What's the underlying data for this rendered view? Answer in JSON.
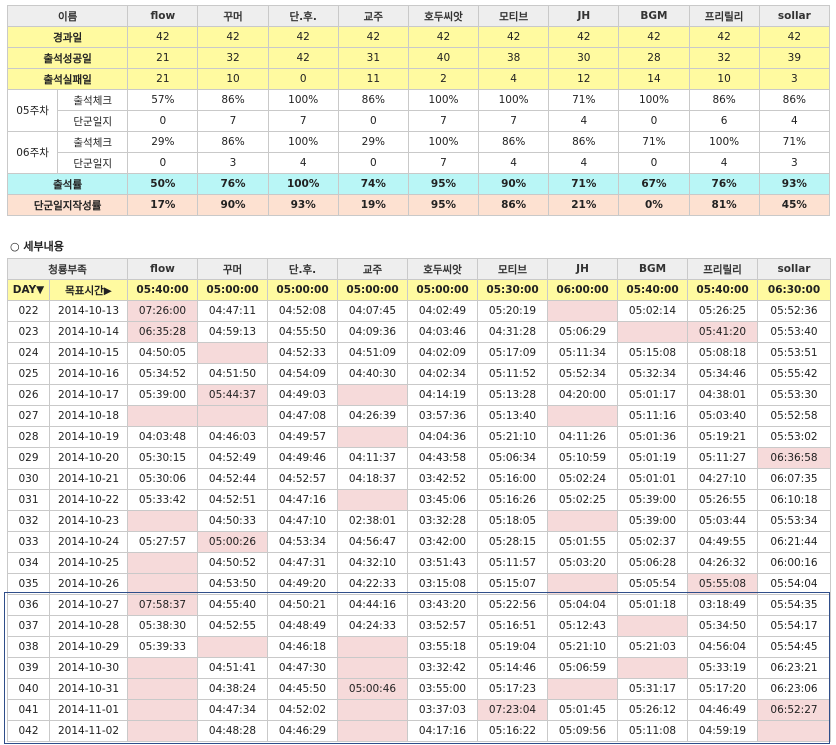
{
  "members": [
    "flow",
    "꾸머",
    "단.후.",
    "교주",
    "호두씨앗",
    "모티브",
    "JH",
    "BGM",
    "프리릴리",
    "sollar"
  ],
  "summary": {
    "name_label": "이름",
    "rows": [
      {
        "label": "경과일",
        "values": [
          "42",
          "42",
          "42",
          "42",
          "42",
          "42",
          "42",
          "42",
          "42",
          "42"
        ]
      },
      {
        "label": "출석성공일",
        "values": [
          "21",
          "32",
          "42",
          "31",
          "40",
          "38",
          "30",
          "28",
          "32",
          "39"
        ]
      },
      {
        "label": "출석실패일",
        "values": [
          "21",
          "10",
          "0",
          "11",
          "2",
          "4",
          "12",
          "14",
          "10",
          "3"
        ]
      }
    ],
    "weeks": [
      {
        "week": "05주차",
        "attendance_label": "출석체크",
        "attendance": [
          "57%",
          "86%",
          "100%",
          "86%",
          "100%",
          "100%",
          "71%",
          "100%",
          "86%",
          "86%"
        ],
        "journal_label": "단군일지",
        "journal": [
          "0",
          "7",
          "7",
          "0",
          "7",
          "7",
          "4",
          "0",
          "6",
          "4"
        ]
      },
      {
        "week": "06주차",
        "attendance_label": "출석체크",
        "attendance": [
          "29%",
          "86%",
          "100%",
          "29%",
          "100%",
          "86%",
          "86%",
          "71%",
          "100%",
          "71%"
        ],
        "journal_label": "단군일지",
        "journal": [
          "0",
          "3",
          "4",
          "0",
          "7",
          "4",
          "4",
          "0",
          "4",
          "3"
        ]
      }
    ],
    "rate_label": "출석률",
    "rates": [
      "50%",
      "76%",
      "100%",
      "74%",
      "95%",
      "90%",
      "71%",
      "67%",
      "76%",
      "93%"
    ],
    "journal_rate_label": "단군일지작성률",
    "journal_rates": [
      "17%",
      "90%",
      "93%",
      "19%",
      "95%",
      "86%",
      "21%",
      "0%",
      "81%",
      "45%"
    ]
  },
  "detail": {
    "section_label": "○ 세부내용",
    "group_label": "청룡부족",
    "day_label": "DAY▼",
    "target_label": "목표시간▶",
    "targets": [
      "05:40:00",
      "05:00:00",
      "05:00:00",
      "05:00:00",
      "05:00:00",
      "05:30:00",
      "06:00:00",
      "05:40:00",
      "05:40:00",
      "06:30:00"
    ],
    "rows": [
      {
        "day": "022",
        "date": "2014-10-13",
        "times": [
          "07:26:00",
          "04:47:11",
          "04:52:08",
          "04:07:45",
          "04:02:49",
          "05:20:19",
          "",
          "05:02:14",
          "05:26:25",
          "05:52:36"
        ],
        "miss": [
          1,
          0,
          0,
          0,
          0,
          0,
          1,
          0,
          0,
          0
        ]
      },
      {
        "day": "023",
        "date": "2014-10-14",
        "times": [
          "06:35:28",
          "04:59:13",
          "04:55:50",
          "04:09:36",
          "04:03:46",
          "04:31:28",
          "05:06:29",
          "",
          "05:41:20",
          "05:53:40"
        ],
        "miss": [
          1,
          0,
          0,
          0,
          0,
          0,
          0,
          1,
          1,
          0
        ]
      },
      {
        "day": "024",
        "date": "2014-10-15",
        "times": [
          "04:50:05",
          "",
          "04:52:33",
          "04:51:09",
          "04:02:09",
          "05:17:09",
          "05:11:34",
          "05:15:08",
          "05:08:18",
          "05:53:51"
        ],
        "miss": [
          0,
          1,
          0,
          0,
          0,
          0,
          0,
          0,
          0,
          0
        ]
      },
      {
        "day": "025",
        "date": "2014-10-16",
        "times": [
          "05:34:52",
          "04:51:50",
          "04:54:09",
          "04:40:30",
          "04:02:34",
          "05:11:52",
          "05:52:34",
          "05:32:34",
          "05:34:46",
          "05:55:42"
        ],
        "miss": [
          0,
          0,
          0,
          0,
          0,
          0,
          0,
          0,
          0,
          0
        ]
      },
      {
        "day": "026",
        "date": "2014-10-17",
        "times": [
          "05:39:00",
          "05:44:37",
          "04:49:03",
          "",
          "04:14:19",
          "05:13:28",
          "04:20:00",
          "05:01:17",
          "04:38:01",
          "05:53:30"
        ],
        "miss": [
          0,
          1,
          0,
          1,
          0,
          0,
          0,
          0,
          0,
          0
        ]
      },
      {
        "day": "027",
        "date": "2014-10-18",
        "times": [
          "",
          "",
          "04:47:08",
          "04:26:39",
          "03:57:36",
          "05:13:40",
          "",
          "05:11:16",
          "05:03:40",
          "05:52:58"
        ],
        "miss": [
          1,
          1,
          0,
          0,
          0,
          0,
          1,
          0,
          0,
          0
        ]
      },
      {
        "day": "028",
        "date": "2014-10-19",
        "times": [
          "04:03:48",
          "04:46:03",
          "04:49:57",
          "",
          "04:04:36",
          "05:21:10",
          "04:11:26",
          "05:01:36",
          "05:19:21",
          "05:53:02"
        ],
        "miss": [
          0,
          0,
          0,
          1,
          0,
          0,
          0,
          0,
          0,
          0
        ]
      },
      {
        "day": "029",
        "date": "2014-10-20",
        "times": [
          "05:30:15",
          "04:52:49",
          "04:49:46",
          "04:11:37",
          "04:43:58",
          "05:06:34",
          "05:10:59",
          "05:01:19",
          "05:11:27",
          "06:36:58"
        ],
        "miss": [
          0,
          0,
          0,
          0,
          0,
          0,
          0,
          0,
          0,
          1
        ]
      },
      {
        "day": "030",
        "date": "2014-10-21",
        "times": [
          "05:30:06",
          "04:52:44",
          "04:52:57",
          "04:18:37",
          "03:42:52",
          "05:16:00",
          "05:02:24",
          "05:01:01",
          "04:27:10",
          "06:07:35"
        ],
        "miss": [
          0,
          0,
          0,
          0,
          0,
          0,
          0,
          0,
          0,
          0
        ]
      },
      {
        "day": "031",
        "date": "2014-10-22",
        "times": [
          "05:33:42",
          "04:52:51",
          "04:47:16",
          "",
          "03:45:06",
          "05:16:26",
          "05:02:25",
          "05:39:00",
          "05:26:55",
          "06:10:18"
        ],
        "miss": [
          0,
          0,
          0,
          1,
          0,
          0,
          0,
          0,
          0,
          0
        ]
      },
      {
        "day": "032",
        "date": "2014-10-23",
        "times": [
          "",
          "04:50:33",
          "04:47:10",
          "02:38:01",
          "03:32:28",
          "05:18:05",
          "",
          "05:39:00",
          "05:03:44",
          "05:53:34"
        ],
        "miss": [
          1,
          0,
          0,
          0,
          0,
          0,
          1,
          0,
          0,
          0
        ]
      },
      {
        "day": "033",
        "date": "2014-10-24",
        "times": [
          "05:27:57",
          "05:00:26",
          "04:53:34",
          "04:56:47",
          "03:42:00",
          "05:28:15",
          "05:01:55",
          "05:02:37",
          "04:49:55",
          "06:21:44"
        ],
        "miss": [
          0,
          1,
          0,
          0,
          0,
          0,
          0,
          0,
          0,
          0
        ]
      },
      {
        "day": "034",
        "date": "2014-10-25",
        "times": [
          "",
          "04:50:52",
          "04:47:31",
          "04:32:10",
          "03:51:43",
          "05:11:57",
          "05:03:20",
          "05:06:28",
          "04:26:32",
          "06:00:16"
        ],
        "miss": [
          1,
          0,
          0,
          0,
          0,
          0,
          0,
          0,
          0,
          0
        ]
      },
      {
        "day": "035",
        "date": "2014-10-26",
        "times": [
          "",
          "04:53:50",
          "04:49:20",
          "04:22:33",
          "03:15:08",
          "05:15:07",
          "",
          "05:05:54",
          "05:55:08",
          "05:54:04"
        ],
        "miss": [
          1,
          0,
          0,
          0,
          0,
          0,
          1,
          0,
          1,
          0
        ]
      },
      {
        "day": "036",
        "date": "2014-10-27",
        "times": [
          "07:58:37",
          "04:55:40",
          "04:50:21",
          "04:44:16",
          "03:43:20",
          "05:22:56",
          "05:04:04",
          "05:01:18",
          "03:18:49",
          "05:54:35"
        ],
        "miss": [
          1,
          0,
          0,
          0,
          0,
          0,
          0,
          0,
          0,
          0
        ]
      },
      {
        "day": "037",
        "date": "2014-10-28",
        "times": [
          "05:38:30",
          "04:52:55",
          "04:48:49",
          "04:24:33",
          "03:52:57",
          "05:16:51",
          "05:12:43",
          "",
          "05:34:50",
          "05:54:17"
        ],
        "miss": [
          0,
          0,
          0,
          0,
          0,
          0,
          0,
          1,
          0,
          0
        ]
      },
      {
        "day": "038",
        "date": "2014-10-29",
        "times": [
          "05:39:33",
          "",
          "04:46:18",
          "",
          "03:55:18",
          "05:19:04",
          "05:21:10",
          "05:21:03",
          "04:56:04",
          "05:54:45"
        ],
        "miss": [
          0,
          1,
          0,
          1,
          0,
          0,
          0,
          0,
          0,
          0
        ]
      },
      {
        "day": "039",
        "date": "2014-10-30",
        "times": [
          "",
          "04:51:41",
          "04:47:30",
          "",
          "03:32:42",
          "05:14:46",
          "05:06:59",
          "",
          "05:33:19",
          "06:23:21"
        ],
        "miss": [
          1,
          0,
          0,
          1,
          0,
          0,
          0,
          1,
          0,
          0
        ]
      },
      {
        "day": "040",
        "date": "2014-10-31",
        "times": [
          "",
          "04:38:24",
          "04:45:50",
          "05:00:46",
          "03:55:00",
          "05:17:23",
          "",
          "05:31:17",
          "05:17:20",
          "06:23:06"
        ],
        "miss": [
          1,
          0,
          0,
          1,
          0,
          0,
          1,
          0,
          0,
          0
        ]
      },
      {
        "day": "041",
        "date": "2014-11-01",
        "times": [
          "",
          "04:47:34",
          "04:52:02",
          "",
          "03:37:03",
          "07:23:04",
          "05:01:45",
          "05:26:12",
          "04:46:49",
          "06:52:27"
        ],
        "miss": [
          1,
          0,
          0,
          1,
          0,
          1,
          0,
          0,
          0,
          1
        ]
      },
      {
        "day": "042",
        "date": "2014-11-02",
        "times": [
          "",
          "04:48:28",
          "04:46:29",
          "",
          "04:17:16",
          "05:16:22",
          "05:09:56",
          "05:11:08",
          "04:59:19",
          ""
        ],
        "miss": [
          1,
          0,
          0,
          1,
          0,
          0,
          0,
          0,
          0,
          1
        ]
      }
    ]
  },
  "colors": {
    "miss": "#f6dada",
    "yellow": "#fffaa0",
    "cyan": "#b9f6f6",
    "peach": "#fde1d1",
    "highlight_border": "#2f4e8a"
  }
}
